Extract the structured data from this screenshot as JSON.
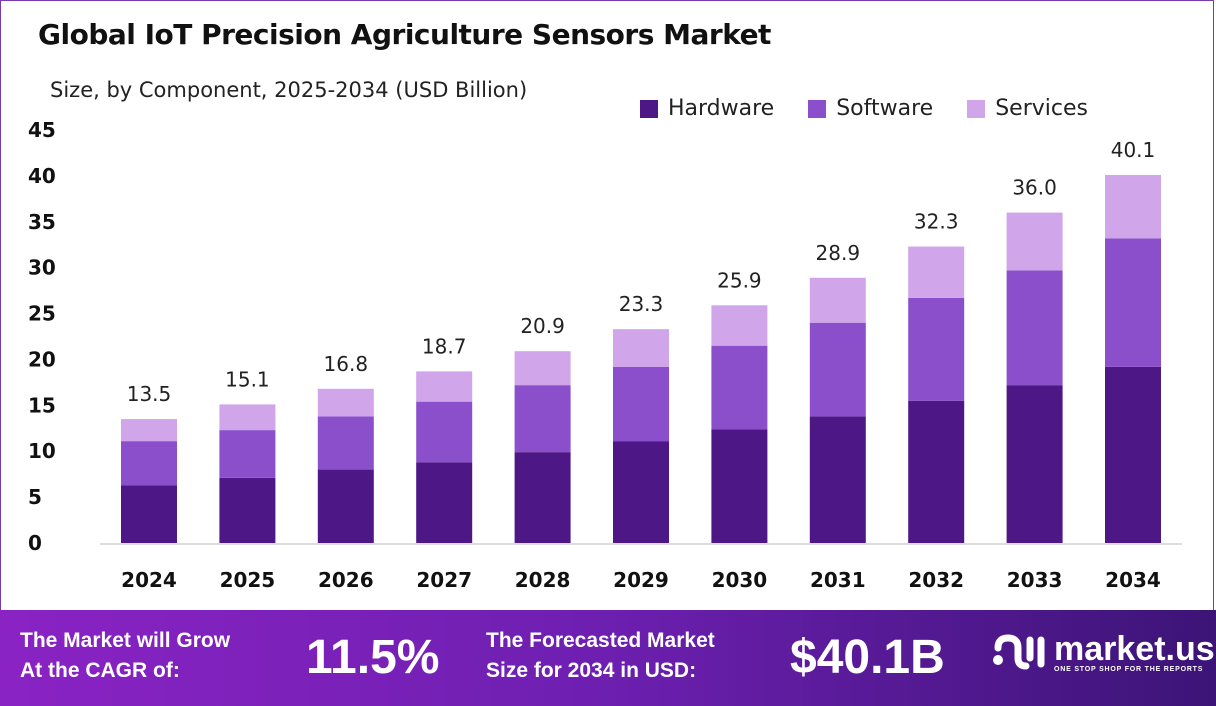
{
  "chart_data": {
    "type": "bar",
    "stacked": true,
    "title": "Global IoT Precision Agriculture Sensors Market",
    "subtitle": "Size, by Component, 2025-2034 (USD Billion)",
    "categories": [
      "2024",
      "2025",
      "2026",
      "2027",
      "2028",
      "2029",
      "2030",
      "2031",
      "2032",
      "2033",
      "2034"
    ],
    "series": [
      {
        "name": "Hardware",
        "color": "#4e1786",
        "values": [
          6.3,
          7.1,
          8.0,
          8.8,
          9.9,
          11.1,
          12.4,
          13.8,
          15.5,
          17.2,
          19.2
        ]
      },
      {
        "name": "Software",
        "color": "#8b4fcc",
        "values": [
          4.8,
          5.2,
          5.8,
          6.6,
          7.3,
          8.1,
          9.1,
          10.2,
          11.2,
          12.5,
          14.0
        ]
      },
      {
        "name": "Services",
        "color": "#d0a5ea",
        "values": [
          2.4,
          2.8,
          3.0,
          3.3,
          3.7,
          4.1,
          4.4,
          4.9,
          5.6,
          6.3,
          6.9
        ]
      }
    ],
    "totals": [
      "13.5",
      "15.1",
      "16.8",
      "18.7",
      "20.9",
      "23.3",
      "25.9",
      "28.9",
      "32.3",
      "36.0",
      "40.1"
    ],
    "yticks": [
      "0",
      "5",
      "10",
      "15",
      "20",
      "25",
      "30",
      "35",
      "40",
      "45"
    ],
    "ylim": [
      0,
      45
    ],
    "grid": false,
    "legend_position": "top-right"
  },
  "footer": {
    "cagr_label_line1": "The Market will Grow",
    "cagr_label_line2": "At the CAGR of:",
    "cagr_value": "11.5%",
    "forecast_label_line1": "The Forecasted Market",
    "forecast_label_line2": "Size for 2034 in USD:",
    "forecast_value": "$40.1B",
    "logo_text": "market.us",
    "logo_tagline": "ONE STOP SHOP FOR THE REPORTS"
  }
}
